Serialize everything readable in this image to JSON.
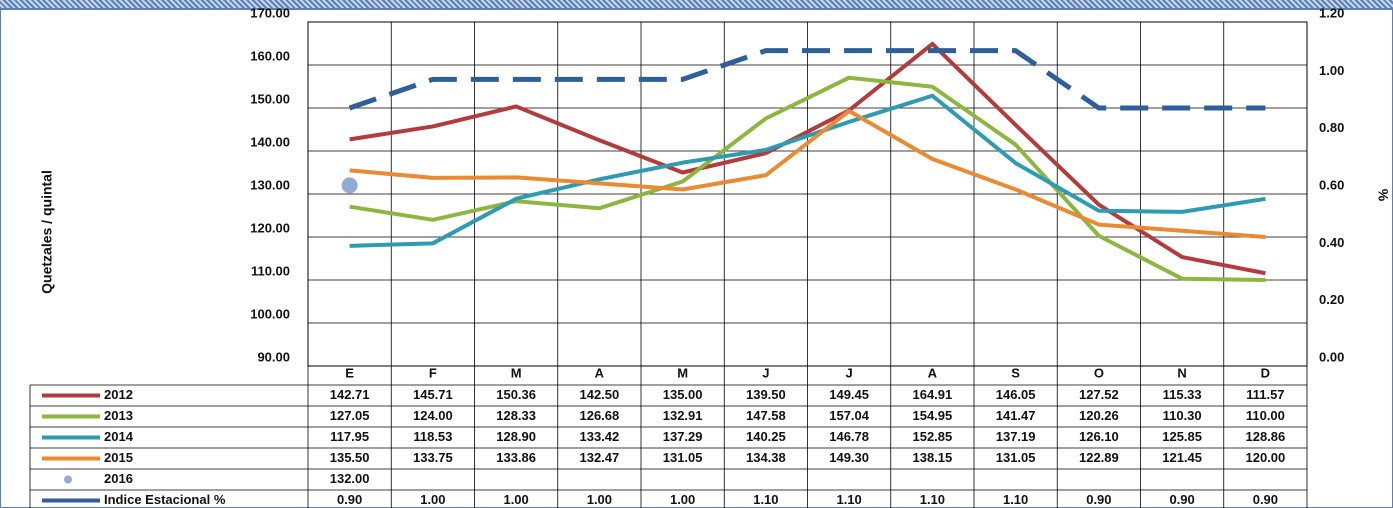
{
  "chart_data": {
    "type": "line",
    "y_label": "Quetzales / quintal",
    "y2_label": "%",
    "categories": [
      "E",
      "F",
      "M",
      "A",
      "M",
      "J",
      "J",
      "A",
      "S",
      "O",
      "N",
      "D"
    ],
    "ylim": [
      90,
      170
    ],
    "yticks": [
      {
        "value": 90,
        "label": "90.00"
      },
      {
        "value": 100,
        "label": "100.00"
      },
      {
        "value": 110,
        "label": "110.00"
      },
      {
        "value": 120,
        "label": "120.00"
      },
      {
        "value": 130,
        "label": "130.00"
      },
      {
        "value": 140,
        "label": "140.00"
      },
      {
        "value": 150,
        "label": "150.00"
      },
      {
        "value": 160,
        "label": "160.00"
      },
      {
        "value": 170,
        "label": "170.00"
      }
    ],
    "y2lim": [
      0,
      1.2
    ],
    "y2ticks": [
      {
        "value": 0,
        "label": "0.00"
      },
      {
        "value": 0.2,
        "label": "0.20"
      },
      {
        "value": 0.4,
        "label": "0.40"
      },
      {
        "value": 0.6,
        "label": "0.60"
      },
      {
        "value": 0.8,
        "label": "0.80"
      },
      {
        "value": 1,
        "label": "1.00"
      },
      {
        "value": 1.2,
        "label": "1.20"
      }
    ],
    "grid": true,
    "series": [
      {
        "name": "2012",
        "color": "#b23b3b",
        "style": "solid",
        "values": [
          142.71,
          145.71,
          150.36,
          142.5,
          135,
          139.5,
          149.45,
          164.91,
          146.05,
          127.52,
          115.33,
          111.57
        ],
        "value_labels": [
          "142.71",
          "145.71",
          "150.36",
          "142.50",
          "135.00",
          "139.50",
          "149.45",
          "164.91",
          "146.05",
          "127.52",
          "115.33",
          "111.57"
        ]
      },
      {
        "name": "2013",
        "color": "#8db640",
        "style": "solid",
        "values": [
          127.05,
          124,
          128.33,
          126.68,
          132.91,
          147.58,
          157.04,
          154.95,
          141.47,
          120.26,
          110.3,
          110
        ],
        "value_labels": [
          "127.05",
          "124.00",
          "128.33",
          "126.68",
          "132.91",
          "147.58",
          "157.04",
          "154.95",
          "141.47",
          "120.26",
          "110.30",
          "110.00"
        ]
      },
      {
        "name": "2014",
        "color": "#2f9bb2",
        "style": "solid",
        "values": [
          117.95,
          118.53,
          128.9,
          133.42,
          137.29,
          140.25,
          146.78,
          152.85,
          137.19,
          126.1,
          125.85,
          128.86
        ],
        "value_labels": [
          "117.95",
          "118.53",
          "128.90",
          "133.42",
          "137.29",
          "140.25",
          "146.78",
          "152.85",
          "137.19",
          "126.10",
          "125.85",
          "128.86"
        ]
      },
      {
        "name": "2015",
        "color": "#ea8a32",
        "style": "solid",
        "values": [
          135.5,
          133.75,
          133.86,
          132.47,
          131.05,
          134.38,
          149.3,
          138.15,
          131.05,
          122.89,
          121.45,
          120
        ],
        "value_labels": [
          "135.50",
          "133.75",
          "133.86",
          "132.47",
          "131.05",
          "134.38",
          "149.30",
          "138.15",
          "131.05",
          "122.89",
          "121.45",
          "120.00"
        ]
      },
      {
        "name": "2016",
        "color": "#93a9d6",
        "style": "marker",
        "values": [
          132,
          null,
          null,
          null,
          null,
          null,
          null,
          null,
          null,
          null,
          null,
          null
        ],
        "value_labels": [
          "132.00",
          null,
          null,
          null,
          null,
          null,
          null,
          null,
          null,
          null,
          null,
          null
        ]
      },
      {
        "name": "Indice Estacional %",
        "color": "#2f5f98",
        "style": "dashed",
        "axis": "y2",
        "values": [
          0.9,
          1,
          1,
          1,
          1,
          1.1,
          1.1,
          1.1,
          1.1,
          0.9,
          0.9,
          0.9
        ],
        "value_labels": [
          "0.90",
          "1.00",
          "1.00",
          "1.00",
          "1.00",
          "1.10",
          "1.10",
          "1.10",
          "1.10",
          "0.90",
          "0.90",
          "0.90"
        ]
      }
    ]
  }
}
